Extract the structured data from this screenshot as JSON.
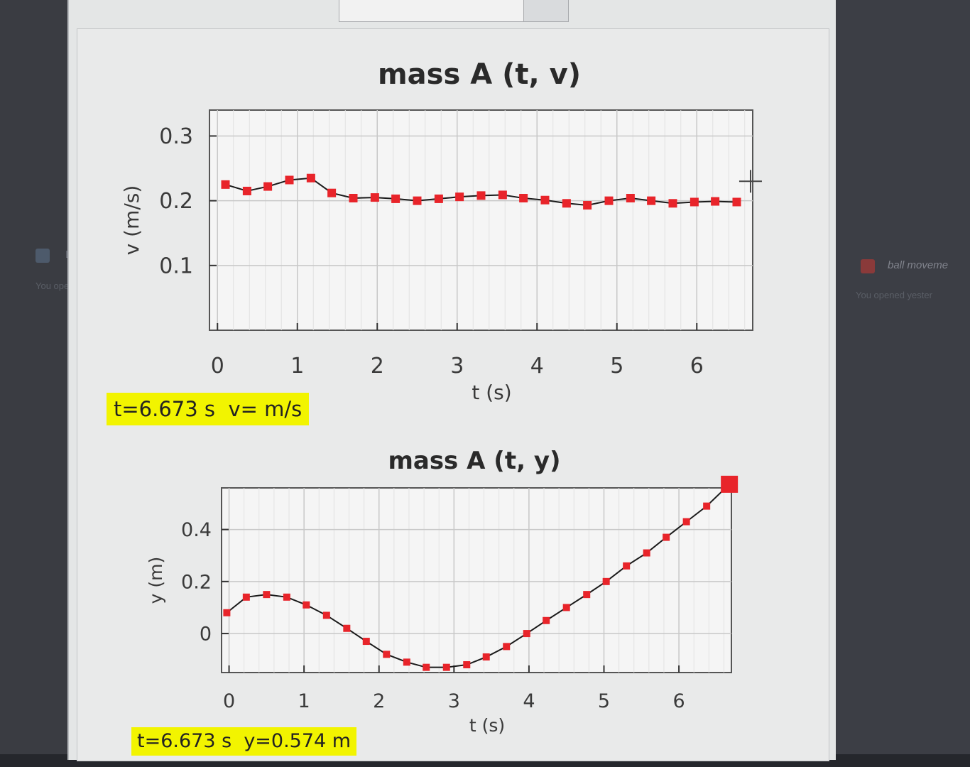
{
  "background": {
    "left_item": "LA",
    "left_item_sub": "You ope",
    "right_item": "ball moveme",
    "right_item_sub": "You opened yester"
  },
  "readouts": {
    "velocity": "t=6.673 s  v= m/s",
    "position": "t=6.673 s  y=0.574 m"
  },
  "colors": {
    "marker": "#e8242a",
    "line": "#1a1a1a",
    "plot_bg": "#f5f5f5",
    "grid": "#c8c8c8",
    "readout_bg": "#f2f400"
  },
  "chart_data": [
    {
      "type": "line",
      "title": "mass A (t, v)",
      "xlabel": "t (s)",
      "ylabel": "v (m/s)",
      "xlim": [
        -0.1,
        6.7
      ],
      "ylim": [
        0.0,
        0.34
      ],
      "xticks": [
        0,
        1,
        2,
        3,
        4,
        5,
        6
      ],
      "yticks": [
        0.1,
        0.2,
        0.3
      ],
      "grid": true,
      "cursor": {
        "t": 6.673,
        "v": 0.23
      },
      "series": [
        {
          "x": [
            0.1,
            0.37,
            0.63,
            0.9,
            1.17,
            1.43,
            1.7,
            1.97,
            2.23,
            2.5,
            2.77,
            3.03,
            3.3,
            3.57,
            3.83,
            4.1,
            4.37,
            4.63,
            4.9,
            5.17,
            5.43,
            5.7,
            5.97,
            6.23,
            6.5
          ],
          "y": [
            0.225,
            0.215,
            0.222,
            0.232,
            0.235,
            0.212,
            0.204,
            0.205,
            0.203,
            0.2,
            0.203,
            0.206,
            0.208,
            0.209,
            0.204,
            0.201,
            0.196,
            0.193,
            0.2,
            0.204,
            0.2,
            0.196,
            0.198,
            0.199,
            0.198
          ]
        }
      ]
    },
    {
      "type": "line",
      "title": "mass A (t, y)",
      "xlabel": "t (s)",
      "ylabel": "y (m)",
      "xlim": [
        -0.1,
        6.7
      ],
      "ylim": [
        -0.15,
        0.56
      ],
      "xticks": [
        0,
        1,
        2,
        3,
        4,
        5,
        6
      ],
      "yticks": [
        0,
        0.2,
        0.4
      ],
      "grid": true,
      "series": [
        {
          "x": [
            -0.03,
            0.23,
            0.5,
            0.77,
            1.03,
            1.3,
            1.57,
            1.83,
            2.1,
            2.37,
            2.63,
            2.9,
            3.17,
            3.43,
            3.7,
            3.97,
            4.23,
            4.5,
            4.77,
            5.03,
            5.3,
            5.57,
            5.83,
            6.1,
            6.37,
            6.673
          ],
          "y": [
            0.08,
            0.14,
            0.15,
            0.14,
            0.11,
            0.07,
            0.02,
            -0.03,
            -0.08,
            -0.11,
            -0.13,
            -0.13,
            -0.12,
            -0.09,
            -0.05,
            0.0,
            0.05,
            0.1,
            0.15,
            0.2,
            0.26,
            0.31,
            0.37,
            0.43,
            0.49,
            0.574
          ]
        }
      ]
    }
  ]
}
